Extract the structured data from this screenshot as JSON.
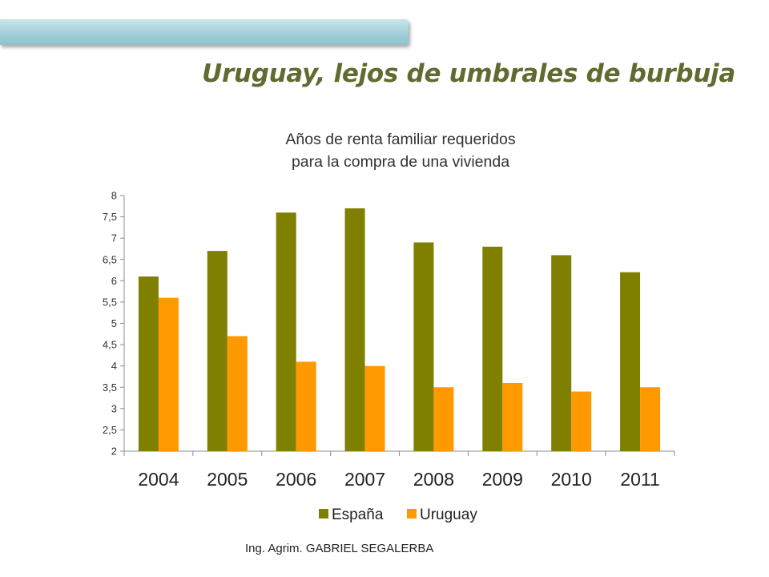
{
  "slide": {
    "title": "Uruguay, lejos de umbrales de burbuja",
    "footer": "Ing. Agrim. GABRIEL SEGALERBA"
  },
  "chart_data": {
    "type": "bar",
    "title_lines": [
      "Años de renta familiar requeridos",
      "para la compra de una vivienda"
    ],
    "xlabel": "",
    "ylabel": "",
    "categories": [
      "2004",
      "2005",
      "2006",
      "2007",
      "2008",
      "2009",
      "2010",
      "2011"
    ],
    "series": [
      {
        "name": "España",
        "color": "#7f7f00",
        "values": [
          6.1,
          6.7,
          7.6,
          7.7,
          6.9,
          6.8,
          6.6,
          6.2
        ]
      },
      {
        "name": "Uruguay",
        "color": "#ff9900",
        "values": [
          5.6,
          4.7,
          4.1,
          4.0,
          3.5,
          3.6,
          3.4,
          3.5
        ]
      }
    ],
    "ylim": [
      2,
      8
    ],
    "ytick_step": 0.5,
    "ytick_labels": [
      "2",
      "2,5",
      "3",
      "3,5",
      "4",
      "4,5",
      "5",
      "5,5",
      "6",
      "6,5",
      "7",
      "7,5",
      "8"
    ],
    "grid": false,
    "legend_position": "bottom"
  }
}
